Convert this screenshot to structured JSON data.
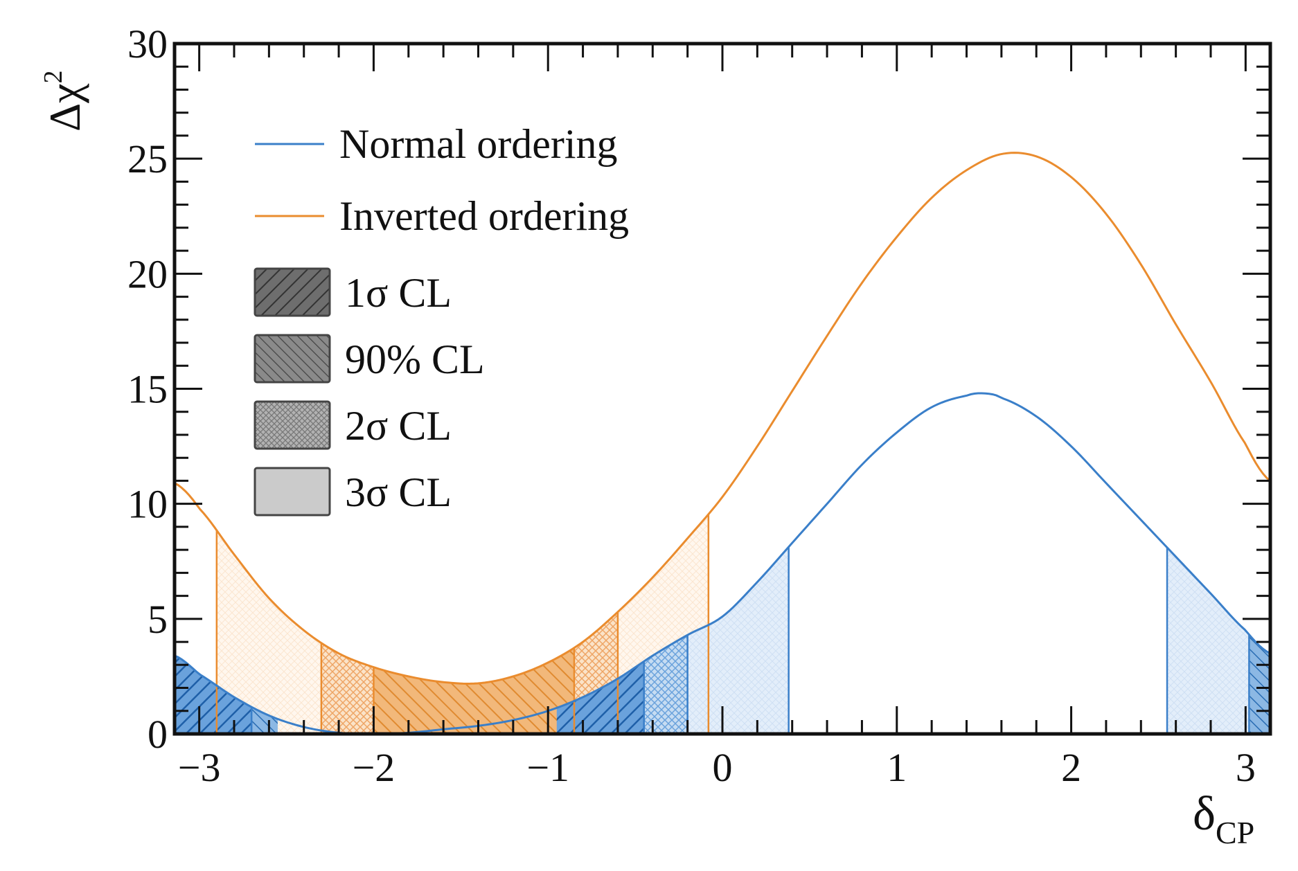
{
  "chart_data": {
    "type": "line",
    "title": "",
    "xlabel": {
      "main": "δ",
      "sub": "CP"
    },
    "ylabel": {
      "main": "Δχ",
      "sup": "2"
    },
    "xlim": [
      -3.1416,
      3.1416
    ],
    "ylim": [
      0,
      30
    ],
    "x_ticks": [
      -3,
      -2,
      -1,
      0,
      1,
      2,
      3
    ],
    "x_tick_labels": [
      "−3",
      "−2",
      "−1",
      "0",
      "1",
      "2",
      "3"
    ],
    "y_ticks": [
      0,
      5,
      10,
      15,
      20,
      25,
      30
    ],
    "y_tick_labels": [
      "0",
      "5",
      "10",
      "15",
      "20",
      "25",
      "30"
    ],
    "grid": false,
    "legend_position": "top-left",
    "series": [
      {
        "name": "Normal ordering",
        "color": "#3a7fc9",
        "x": [
          -3.14,
          -3.0,
          -2.8,
          -2.6,
          -2.4,
          -2.2,
          -2.0,
          -1.8,
          -1.6,
          -1.4,
          -1.2,
          -1.0,
          -0.8,
          -0.6,
          -0.4,
          -0.2,
          0.0,
          0.2,
          0.4,
          0.6,
          0.8,
          1.0,
          1.2,
          1.4,
          1.5,
          1.6,
          1.8,
          2.0,
          2.2,
          2.4,
          2.6,
          2.8,
          3.0,
          3.14
        ],
        "y": [
          3.4,
          2.6,
          1.6,
          0.8,
          0.3,
          0.05,
          0.0,
          0.05,
          0.2,
          0.35,
          0.6,
          1.0,
          1.6,
          2.4,
          3.4,
          4.3,
          5.1,
          6.6,
          8.3,
          10.0,
          11.7,
          13.1,
          14.2,
          14.7,
          14.8,
          14.6,
          13.8,
          12.5,
          10.9,
          9.3,
          7.7,
          6.1,
          4.5,
          3.5
        ]
      },
      {
        "name": "Inverted ordering",
        "color": "#ea8c2e",
        "x": [
          -3.14,
          -3.0,
          -2.8,
          -2.6,
          -2.4,
          -2.2,
          -2.0,
          -1.8,
          -1.6,
          -1.4,
          -1.2,
          -1.0,
          -0.8,
          -0.6,
          -0.4,
          -0.2,
          0.0,
          0.2,
          0.4,
          0.6,
          0.8,
          1.0,
          1.2,
          1.4,
          1.6,
          1.8,
          2.0,
          2.2,
          2.4,
          2.6,
          2.8,
          3.0,
          3.14
        ],
        "y": [
          10.9,
          9.8,
          7.8,
          5.9,
          4.5,
          3.5,
          2.9,
          2.5,
          2.25,
          2.2,
          2.5,
          3.1,
          4.0,
          5.3,
          6.8,
          8.5,
          10.3,
          12.5,
          14.9,
          17.3,
          19.6,
          21.6,
          23.3,
          24.5,
          25.2,
          25.1,
          24.2,
          22.6,
          20.4,
          17.8,
          15.3,
          12.6,
          11.0
        ]
      }
    ],
    "legend_fill_entries": [
      {
        "label": "1σ CL",
        "pattern": "hatch-dense",
        "fill": "#555555"
      },
      {
        "label": "90% CL",
        "pattern": "hatch-back",
        "fill": "#6a6a6a"
      },
      {
        "label": "2σ CL",
        "pattern": "crosshatch",
        "fill": "#999999"
      },
      {
        "label": "3σ CL",
        "pattern": "solid",
        "fill": "#c9c9c9"
      }
    ],
    "confidence_regions": [
      {
        "series": "Normal ordering",
        "color": "#3a7fc9",
        "intervals": [
          {
            "level": "1σ",
            "segments": [
              [
                -3.1416,
                -2.7
              ],
              [
                -0.95,
                -0.45
              ]
            ]
          },
          {
            "level": "90%",
            "segments": [
              [
                -2.7,
                -2.55
              ],
              [
                -0.45,
                -0.45
              ]
            ]
          },
          {
            "level": "2σ",
            "segments": [
              [
                -0.45,
                -0.2
              ]
            ]
          },
          {
            "level": "3σ",
            "segments": [
              [
                -0.2,
                0.38
              ],
              [
                2.55,
                3.02
              ]
            ]
          },
          {
            "level": "edge",
            "segments": [
              [
                3.02,
                3.1416
              ]
            ]
          }
        ],
        "boundaries": [
          -2.7,
          -0.45,
          -0.2,
          0.38,
          2.55,
          3.02
        ]
      },
      {
        "series": "Inverted ordering",
        "color": "#ea8c2e",
        "intervals": [
          {
            "level": "1σ",
            "segments": [
              [
                -2.0,
                -0.85
              ]
            ]
          },
          {
            "level": "2σ",
            "segments": [
              [
                -2.3,
                -2.0
              ],
              [
                -0.85,
                -0.6
              ]
            ]
          },
          {
            "level": "3σ",
            "segments": [
              [
                -2.9,
                -2.3
              ],
              [
                -0.6,
                -0.08
              ]
            ]
          }
        ],
        "boundaries": [
          -2.9,
          -2.3,
          -2.0,
          -0.85,
          -0.6,
          -0.08
        ]
      }
    ]
  }
}
